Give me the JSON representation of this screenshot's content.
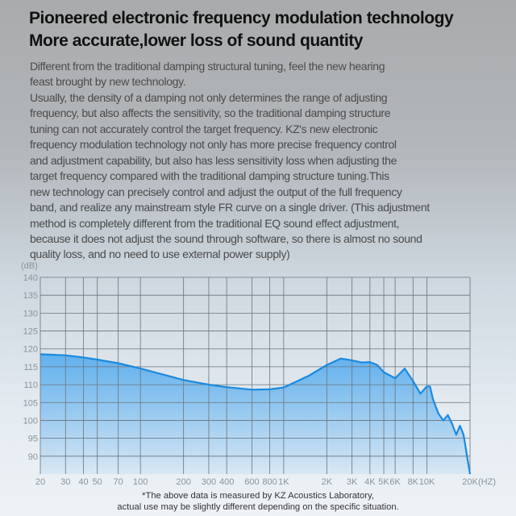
{
  "header": {
    "title_line1": "Pioneered electronic frequency modulation technology",
    "title_line2": "More accurate,lower loss of sound quantity"
  },
  "body_lines": [
    "Different from the traditional damping structural tuning, feel the new hearing",
    "feast brought by new technology.",
    "Usually, the density of a damping not only determines the range of adjusting",
    "frequency, but also affects the sensitivity, so the traditional damping structure",
    "tuning can not accurately control the target frequency. KZ's new electronic",
    "frequency modulation technology not only has more precise frequency control",
    "and adjustment capability, but also has less sensitivity loss when adjusting the",
    "target frequency compared with the traditional damping structure tuning.This",
    "new technology can precisely control and adjust the output of the full frequency",
    "band, and realize any mainstream style FR curve on a single driver. (This adjustment",
    "method is completely different from the traditional EQ sound effect adjustment,",
    "because it does not adjust the sound through software, so there is almost no sound",
    "quality loss, and no need to use external power supply)"
  ],
  "footnote": {
    "line1": "*The above data is measured by KZ Acoustics Laboratory,",
    "line2": "actual use may be slightly different depending on the specific situation."
  },
  "chart_data": {
    "type": "area",
    "ylabel": "(dB)",
    "xlabel": "(HZ)",
    "x_scale": "log",
    "xlim": [
      20,
      20000
    ],
    "ylim": [
      85,
      140
    ],
    "grid": true,
    "line_color": "#1a8ae0",
    "fill_color": "#5aaeef",
    "y_ticks": [
      140,
      135,
      130,
      125,
      120,
      115,
      110,
      105,
      100,
      95,
      90
    ],
    "x_ticks": [
      {
        "v": 20,
        "label": "20"
      },
      {
        "v": 30,
        "label": "30"
      },
      {
        "v": 40,
        "label": "40"
      },
      {
        "v": 50,
        "label": "50"
      },
      {
        "v": 70,
        "label": "70"
      },
      {
        "v": 100,
        "label": "100"
      },
      {
        "v": 200,
        "label": "200"
      },
      {
        "v": 300,
        "label": "300"
      },
      {
        "v": 400,
        "label": "400"
      },
      {
        "v": 600,
        "label": "600"
      },
      {
        "v": 800,
        "label": "800"
      },
      {
        "v": 1000,
        "label": "1K"
      },
      {
        "v": 2000,
        "label": "2K"
      },
      {
        "v": 3000,
        "label": "3K"
      },
      {
        "v": 4000,
        "label": "4K"
      },
      {
        "v": 5000,
        "label": "5K"
      },
      {
        "v": 6000,
        "label": "6K"
      },
      {
        "v": 8000,
        "label": "8K"
      },
      {
        "v": 10000,
        "label": "10K"
      },
      {
        "v": 20000,
        "label": "20K"
      }
    ],
    "x": [
      20,
      30,
      40,
      50,
      70,
      100,
      200,
      300,
      400,
      600,
      800,
      1000,
      1500,
      2000,
      2500,
      3000,
      3500,
      4000,
      4500,
      5000,
      6000,
      7000,
      8000,
      9000,
      10000,
      10500,
      11000,
      12000,
      13000,
      14000,
      15000,
      16000,
      17000,
      18000,
      20000
    ],
    "y": [
      118.5,
      118.2,
      117.6,
      117,
      116,
      114.5,
      111.3,
      110,
      109.3,
      108.6,
      108.7,
      109.2,
      112.5,
      115.5,
      117.3,
      116.8,
      116.2,
      116.3,
      115.5,
      113.5,
      111.8,
      114.5,
      111,
      107.5,
      109.5,
      109.5,
      106,
      102,
      100,
      101.5,
      99,
      96,
      98.5,
      96,
      85
    ]
  }
}
